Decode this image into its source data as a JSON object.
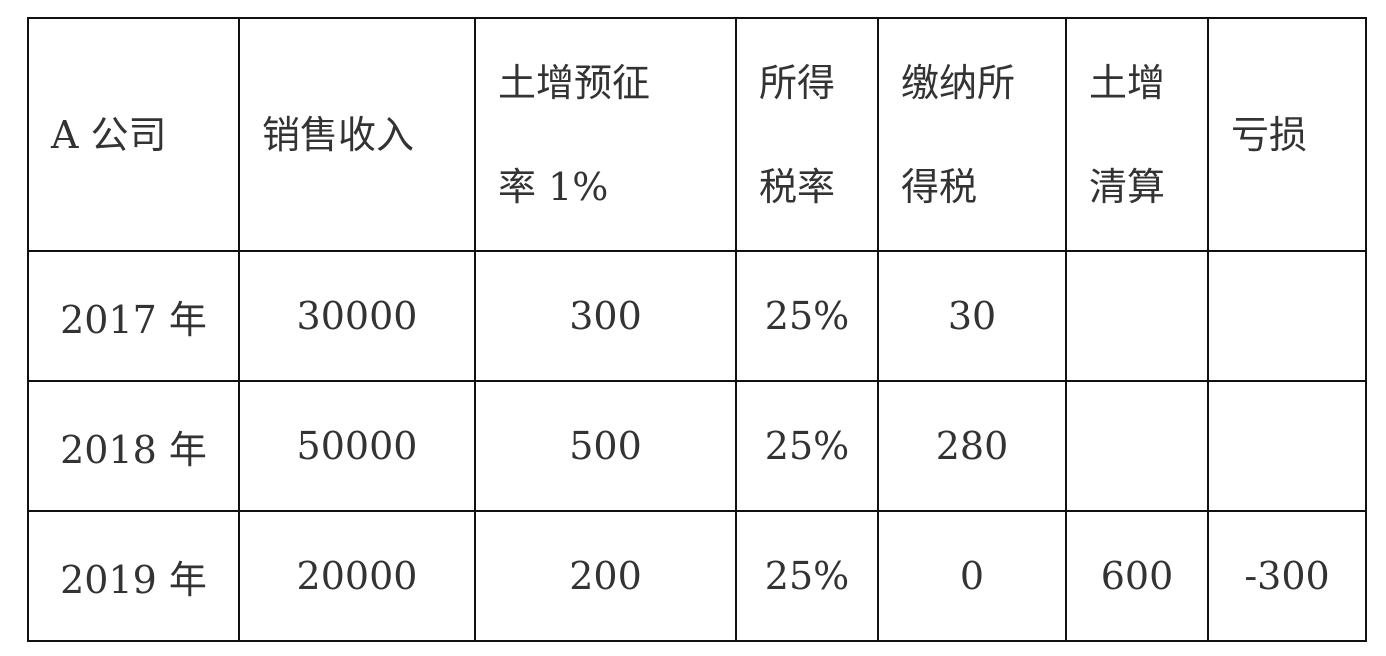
{
  "table": {
    "headers": [
      [
        "A 公司"
      ],
      [
        "销售收入"
      ],
      [
        "土增预征",
        "率 1%"
      ],
      [
        "所得",
        "税率"
      ],
      [
        "缴纳所",
        "得税"
      ],
      [
        "土增",
        "清算"
      ],
      [
        "亏损"
      ]
    ],
    "rows": [
      [
        "2017 年",
        "30000",
        "300",
        "25%",
        "30",
        "",
        ""
      ],
      [
        "2018 年",
        "50000",
        "500",
        "25%",
        "280",
        "",
        ""
      ],
      [
        "2019 年",
        "20000",
        "200",
        "25%",
        "0",
        "600",
        "-300"
      ]
    ]
  }
}
